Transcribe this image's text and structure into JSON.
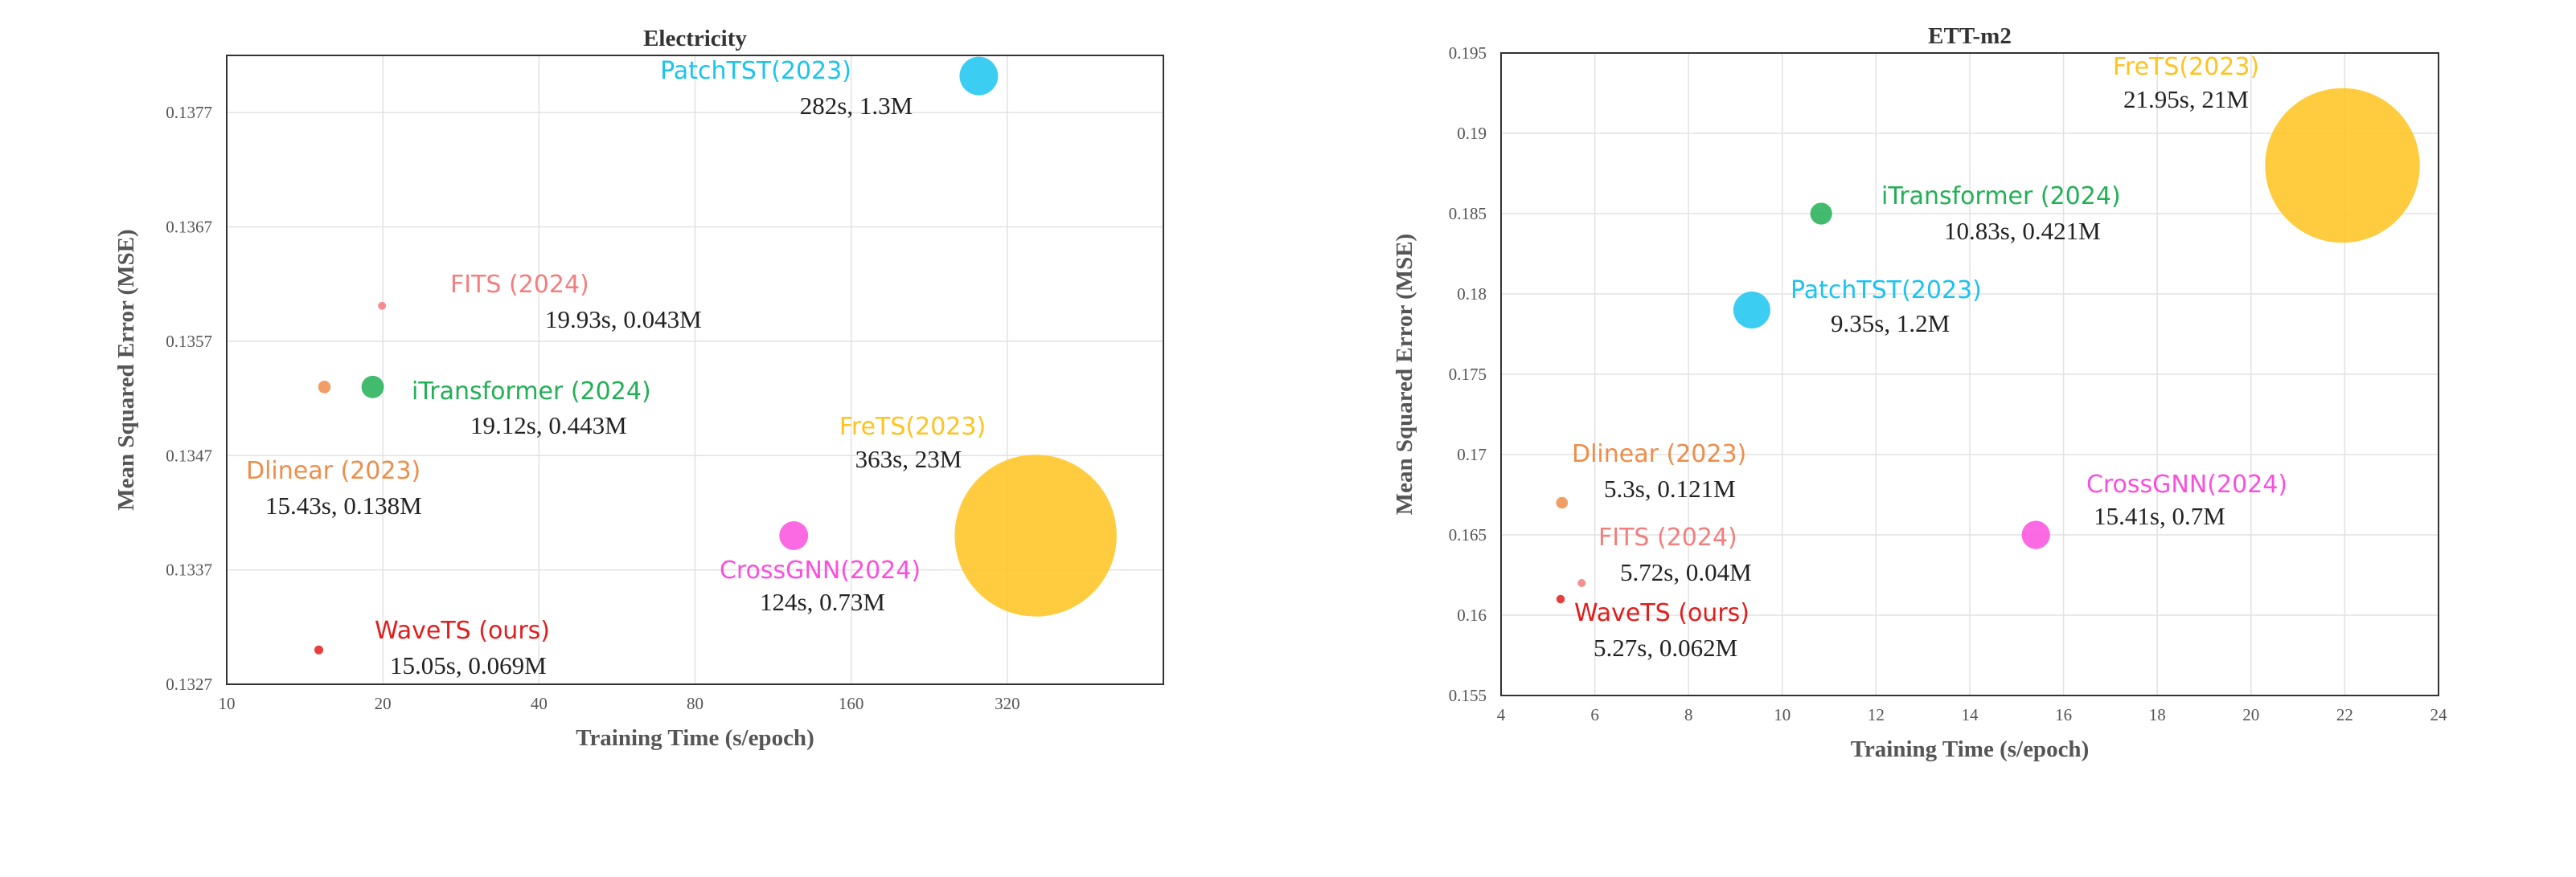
{
  "chart_data": [
    {
      "type": "scatter",
      "title": "Electricity",
      "xlabel": "Training Time (s/epoch)",
      "ylabel": "Mean Squared Error (MSE)",
      "x_scale": "log2",
      "xlim": [
        10,
        640
      ],
      "ylim": [
        0.1327,
        0.1382
      ],
      "x_ticks": [
        10,
        20,
        40,
        80,
        160,
        320
      ],
      "y_ticks": [
        0.1327,
        0.1337,
        0.1347,
        0.1357,
        0.1367,
        0.1377
      ],
      "grid": true,
      "series": [
        {
          "name": "PatchTST(2023)",
          "stats": "282s, 1.3M",
          "x": 282,
          "y": 0.13802,
          "params_m": 1.3,
          "color": "#1AC4F0"
        },
        {
          "name": "FITS (2024)",
          "stats": "19.93s, 0.043M",
          "x": 19.93,
          "y": 0.13601,
          "params_m": 0.043,
          "color": "#F47D7D"
        },
        {
          "name": "iTransformer (2024)",
          "stats": "19.12s, 0.443M",
          "x": 19.12,
          "y": 0.1353,
          "params_m": 0.443,
          "color": "#22AF55"
        },
        {
          "name": "Dlinear (2023)",
          "stats": "15.43s, 0.138M",
          "x": 15.43,
          "y": 0.1353,
          "params_m": 0.138,
          "color": "#EE8D4A"
        },
        {
          "name": "FreTS(2023)",
          "stats": "363s, 23M",
          "x": 363,
          "y": 0.134,
          "params_m": 23,
          "color": "#FFC31F"
        },
        {
          "name": "CrossGNN(2024)",
          "stats": "124s, 0.73M",
          "x": 124,
          "y": 0.134,
          "params_m": 0.73,
          "color": "#FA4FDE"
        },
        {
          "name": "WaveTS (ours)",
          "stats": "15.05s, 0.069M",
          "x": 15.05,
          "y": 0.133,
          "params_m": 0.069,
          "color": "#E31C1C"
        }
      ]
    },
    {
      "type": "scatter",
      "title": "ETT-m2",
      "xlabel": "Training Time (s/epoch)",
      "ylabel": "Mean Squared Error (MSE)",
      "xlim": [
        4,
        24
      ],
      "ylim": [
        0.155,
        0.195
      ],
      "x_ticks": [
        4,
        6,
        8,
        10,
        12,
        14,
        16,
        18,
        20,
        22,
        24
      ],
      "y_ticks": [
        0.155,
        0.16,
        0.165,
        0.17,
        0.175,
        0.18,
        0.185,
        0.19,
        0.195
      ],
      "grid": true,
      "series": [
        {
          "name": "FreTS(2023)",
          "stats": "21.95s, 21M",
          "x": 21.95,
          "y": 0.188,
          "params_m": 21,
          "color": "#FFC31F"
        },
        {
          "name": "iTransformer (2024)",
          "stats": "10.83s, 0.421M",
          "x": 10.83,
          "y": 0.185,
          "params_m": 0.421,
          "color": "#22AF55"
        },
        {
          "name": "PatchTST(2023)",
          "stats": "9.35s, 1.2M",
          "x": 9.35,
          "y": 0.179,
          "params_m": 1.2,
          "color": "#1AC4F0"
        },
        {
          "name": "Dlinear (2023)",
          "stats": "5.3s, 0.121M",
          "x": 5.3,
          "y": 0.167,
          "params_m": 0.121,
          "color": "#EE8D4A"
        },
        {
          "name": "CrossGNN(2024)",
          "stats": "15.41s, 0.7M",
          "x": 15.41,
          "y": 0.165,
          "params_m": 0.7,
          "color": "#FA4FDE"
        },
        {
          "name": "FITS (2024)",
          "stats": "5.72s, 0.04M",
          "x": 5.72,
          "y": 0.162,
          "params_m": 0.04,
          "color": "#F47D7D"
        },
        {
          "name": "WaveTS (ours)",
          "stats": "5.27s, 0.062M",
          "x": 5.27,
          "y": 0.161,
          "params_m": 0.062,
          "color": "#E31C1C"
        }
      ]
    }
  ]
}
